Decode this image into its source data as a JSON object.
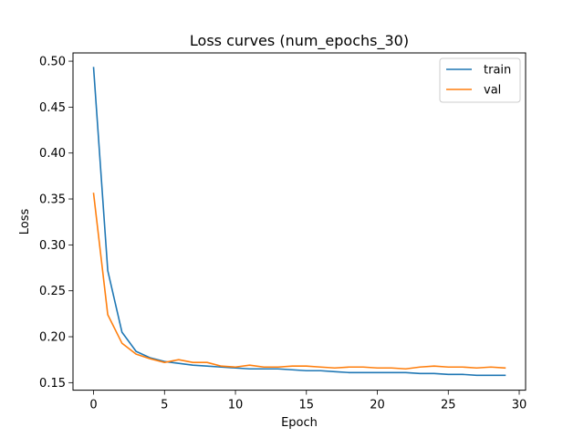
{
  "chart_data": {
    "type": "line",
    "title": "Loss curves (num_epochs_30)",
    "xlabel": "Epoch",
    "ylabel": "Loss",
    "xlim": [
      -1.45,
      30.45
    ],
    "ylim": [
      0.1418,
      0.509
    ],
    "xticks": [
      0,
      5,
      10,
      15,
      20,
      25,
      30
    ],
    "yticks": [
      0.15,
      0.2,
      0.25,
      0.3,
      0.35,
      0.4,
      0.45,
      0.5
    ],
    "ytick_labels": [
      "0.15",
      "0.20",
      "0.25",
      "0.30",
      "0.35",
      "0.40",
      "0.45",
      "0.50"
    ],
    "grid": false,
    "legend_position": "top-right",
    "x": [
      0,
      1,
      2,
      3,
      4,
      5,
      6,
      7,
      8,
      9,
      10,
      11,
      12,
      13,
      14,
      15,
      16,
      17,
      18,
      19,
      20,
      21,
      22,
      23,
      24,
      25,
      26,
      27,
      28,
      29
    ],
    "series": [
      {
        "name": "train",
        "color": "#1f77b4",
        "values": [
          0.493,
          0.272,
          0.205,
          0.184,
          0.177,
          0.173,
          0.171,
          0.169,
          0.168,
          0.167,
          0.166,
          0.165,
          0.165,
          0.165,
          0.164,
          0.163,
          0.163,
          0.162,
          0.161,
          0.161,
          0.161,
          0.161,
          0.161,
          0.16,
          0.16,
          0.159,
          0.159,
          0.158,
          0.158,
          0.158
        ]
      },
      {
        "name": "val",
        "color": "#ff7f0e",
        "values": [
          0.356,
          0.224,
          0.193,
          0.181,
          0.176,
          0.172,
          0.175,
          0.172,
          0.172,
          0.168,
          0.167,
          0.169,
          0.167,
          0.167,
          0.168,
          0.168,
          0.167,
          0.166,
          0.167,
          0.167,
          0.166,
          0.166,
          0.165,
          0.167,
          0.168,
          0.167,
          0.167,
          0.166,
          0.167,
          0.166
        ]
      }
    ]
  }
}
